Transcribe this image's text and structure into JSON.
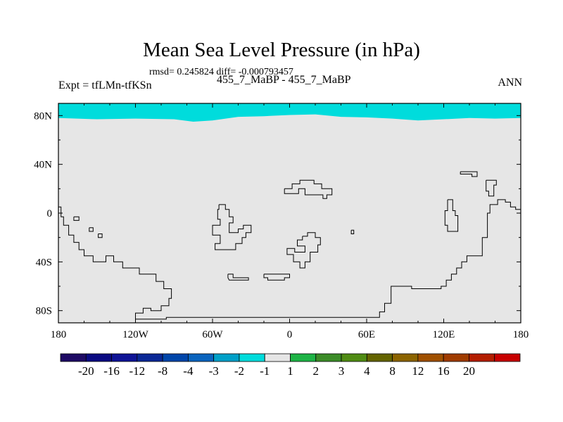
{
  "chart_data": {
    "type": "heatmap",
    "title": "Mean Sea Level Pressure (in hPa)",
    "stats_line": "rmsd= 0.245824 diff= -0.000793457",
    "subtitle": "455_7_MaBP - 455_7_MaBP",
    "left_label": "Expt = tfLMn-tfKSn",
    "right_label": "ANN",
    "x_range": [
      -180,
      180
    ],
    "y_range": [
      -90,
      90
    ],
    "x_ticks": [
      {
        "value": -180,
        "label": "180"
      },
      {
        "value": -120,
        "label": "120W"
      },
      {
        "value": -60,
        "label": "60W"
      },
      {
        "value": 0,
        "label": "0"
      },
      {
        "value": 60,
        "label": "60E"
      },
      {
        "value": 120,
        "label": "120E"
      },
      {
        "value": 180,
        "label": "180"
      }
    ],
    "y_ticks": [
      {
        "value": 80,
        "label": "80N"
      },
      {
        "value": 40,
        "label": "40N"
      },
      {
        "value": 0,
        "label": "0"
      },
      {
        "value": -40,
        "label": "40S"
      },
      {
        "value": -80,
        "label": "80S"
      }
    ],
    "colorbar": {
      "colors": [
        "#1e0a64",
        "#0a0a82",
        "#0f1496",
        "#0a2896",
        "#0046aa",
        "#0a64be",
        "#00a0c8",
        "#00dcdc",
        "#e6e6e6",
        "#1eb446",
        "#3c8c28",
        "#508c14",
        "#646400",
        "#8c6400",
        "#a05000",
        "#a03c00",
        "#b41e00",
        "#c80000"
      ],
      "labels": [
        "-20",
        "-16",
        "-12",
        "-8",
        "-4",
        "-3",
        "-2",
        "-1",
        "1",
        "2",
        "3",
        "4",
        "8",
        "12",
        "16",
        "20"
      ]
    },
    "fields": {
      "dominant_value_range": [
        -1,
        1
      ],
      "dominant_color": "#e6e6e6",
      "arctic_band_value_range": [
        -2,
        -1
      ],
      "arctic_band_color": "#00dcdc",
      "arctic_band_boundary": [
        [
          -180,
          78
        ],
        [
          -150,
          77
        ],
        [
          -120,
          77.5
        ],
        [
          -90,
          77
        ],
        [
          -75,
          75
        ],
        [
          -60,
          76
        ],
        [
          -40,
          79
        ],
        [
          -20,
          79.5
        ],
        [
          0,
          80.5
        ],
        [
          20,
          81
        ],
        [
          40,
          79
        ],
        [
          60,
          78.5
        ],
        [
          80,
          77.5
        ],
        [
          100,
          76
        ],
        [
          120,
          77
        ],
        [
          140,
          78
        ],
        [
          160,
          77.5
        ],
        [
          180,
          78
        ]
      ]
    },
    "contours": [
      [
        [
          -180,
          5
        ],
        [
          -178,
          5
        ],
        [
          -178,
          -3
        ],
        [
          -176,
          -3
        ],
        [
          -176,
          -10
        ],
        [
          -172,
          -10
        ],
        [
          -172,
          -18
        ],
        [
          -168,
          -18
        ],
        [
          -168,
          -24
        ],
        [
          -164,
          -24
        ],
        [
          -164,
          -30
        ],
        [
          -160,
          -30
        ],
        [
          -160,
          -35
        ],
        [
          -153,
          -35
        ],
        [
          -153,
          -40
        ],
        [
          -143,
          -40
        ],
        [
          -143,
          -35
        ],
        [
          -137,
          -35
        ],
        [
          -137,
          -40
        ],
        [
          -130,
          -40
        ],
        [
          -130,
          -45
        ],
        [
          -117,
          -45
        ],
        [
          -117,
          -50
        ],
        [
          -104,
          -50
        ],
        [
          -104,
          -56
        ],
        [
          -98,
          -56
        ],
        [
          -98,
          -62
        ],
        [
          -92,
          -62
        ],
        [
          -92,
          -70
        ],
        [
          -94,
          -70
        ],
        [
          -94,
          -76
        ],
        [
          -100,
          -76
        ],
        [
          -100,
          -80
        ],
        [
          -108,
          -80
        ],
        [
          -108,
          -78
        ],
        [
          -114,
          -78
        ],
        [
          -114,
          -82
        ],
        [
          -120,
          -82
        ],
        [
          -120,
          -87
        ],
        [
          -96,
          -87
        ],
        [
          -96,
          -85.5
        ],
        [
          70,
          -85.5
        ],
        [
          70,
          -81
        ],
        [
          74,
          -81
        ],
        [
          74,
          -74
        ],
        [
          79,
          -74
        ],
        [
          79,
          -60
        ],
        [
          95,
          -60
        ],
        [
          95,
          -62
        ],
        [
          118,
          -62
        ],
        [
          118,
          -60
        ],
        [
          122,
          -60
        ],
        [
          122,
          -55
        ],
        [
          126,
          -55
        ],
        [
          126,
          -50
        ],
        [
          130,
          -50
        ],
        [
          130,
          -45
        ],
        [
          134,
          -45
        ],
        [
          134,
          -40
        ],
        [
          138,
          -40
        ],
        [
          138,
          -35
        ],
        [
          150,
          -35
        ],
        [
          150,
          -20
        ],
        [
          154,
          -20
        ],
        [
          154,
          0
        ],
        [
          156,
          0
        ],
        [
          156,
          7
        ],
        [
          162,
          7
        ],
        [
          162,
          11
        ],
        [
          168,
          11
        ],
        [
          168,
          9
        ],
        [
          172,
          9
        ],
        [
          172,
          5
        ],
        [
          176,
          5
        ],
        [
          176,
          3
        ],
        [
          180,
          3
        ]
      ],
      [
        [
          -168,
          -3
        ],
        [
          -164,
          -3
        ],
        [
          -164,
          -6
        ],
        [
          -168,
          -6
        ],
        [
          -168,
          -3
        ]
      ],
      [
        [
          -156,
          -12
        ],
        [
          -153,
          -12
        ],
        [
          -153,
          -15
        ],
        [
          -156,
          -15
        ],
        [
          -156,
          -12
        ]
      ],
      [
        [
          -149,
          -17
        ],
        [
          -146,
          -17
        ],
        [
          -146,
          -20
        ],
        [
          -149,
          -20
        ],
        [
          -149,
          -17
        ]
      ],
      [
        [
          -55,
          7
        ],
        [
          -50,
          7
        ],
        [
          -50,
          3
        ],
        [
          -47,
          3
        ],
        [
          -47,
          -3
        ],
        [
          -44,
          -3
        ],
        [
          -44,
          -8
        ],
        [
          -47,
          -8
        ],
        [
          -47,
          -16
        ],
        [
          -40,
          -16
        ],
        [
          -40,
          -13
        ],
        [
          -36,
          -13
        ],
        [
          -36,
          -10
        ],
        [
          -30,
          -10
        ],
        [
          -30,
          -16
        ],
        [
          -34,
          -16
        ],
        [
          -34,
          -20
        ],
        [
          -37,
          -20
        ],
        [
          -37,
          -25
        ],
        [
          -42,
          -25
        ],
        [
          -42,
          -30
        ],
        [
          -58,
          -30
        ],
        [
          -58,
          -25
        ],
        [
          -54,
          -25
        ],
        [
          -54,
          -18
        ],
        [
          -60,
          -18
        ],
        [
          -60,
          -10
        ],
        [
          -54,
          -10
        ],
        [
          -54,
          -5
        ],
        [
          -56,
          -5
        ],
        [
          -56,
          3
        ],
        [
          -55,
          3
        ],
        [
          -55,
          7
        ]
      ],
      [
        [
          -48,
          -50
        ],
        [
          -44,
          -50
        ],
        [
          -44,
          -53
        ],
        [
          -32,
          -53
        ],
        [
          -32,
          -55
        ],
        [
          -47,
          -55
        ],
        [
          -48,
          -53
        ],
        [
          -48,
          -50
        ]
      ],
      [
        [
          -20,
          -50
        ],
        [
          0,
          -50
        ],
        [
          0,
          -53
        ],
        [
          -4,
          -53
        ],
        [
          -4,
          -55
        ],
        [
          -17,
          -55
        ],
        [
          -17,
          -53
        ],
        [
          -20,
          -53
        ],
        [
          -20,
          -50
        ]
      ],
      [
        [
          -4,
          20
        ],
        [
          2,
          20
        ],
        [
          2,
          24
        ],
        [
          8,
          24
        ],
        [
          8,
          27
        ],
        [
          19,
          27
        ],
        [
          19,
          24
        ],
        [
          25,
          24
        ],
        [
          25,
          20
        ],
        [
          33,
          20
        ],
        [
          33,
          15
        ],
        [
          29,
          15
        ],
        [
          29,
          12
        ],
        [
          26,
          12
        ],
        [
          26,
          15
        ],
        [
          12,
          15
        ],
        [
          12,
          20
        ],
        [
          7,
          20
        ],
        [
          7,
          16
        ],
        [
          -4,
          16
        ],
        [
          -4,
          20
        ]
      ],
      [
        [
          10,
          -19
        ],
        [
          14,
          -19
        ],
        [
          14,
          -16
        ],
        [
          20,
          -16
        ],
        [
          20,
          -20
        ],
        [
          24,
          -20
        ],
        [
          24,
          -26
        ],
        [
          22,
          -26
        ],
        [
          22,
          -32
        ],
        [
          16,
          -32
        ],
        [
          16,
          -40
        ],
        [
          12,
          -40
        ],
        [
          12,
          -45
        ],
        [
          8,
          -45
        ],
        [
          8,
          -40
        ],
        [
          3,
          -40
        ],
        [
          3,
          -34
        ],
        [
          -2,
          -34
        ],
        [
          -2,
          -29
        ],
        [
          4,
          -29
        ],
        [
          4,
          -32
        ],
        [
          12,
          -32
        ],
        [
          12,
          -27
        ],
        [
          6,
          -27
        ],
        [
          6,
          -22
        ],
        [
          10,
          -22
        ],
        [
          10,
          -19
        ]
      ],
      [
        [
          48,
          -14
        ],
        [
          50,
          -14
        ],
        [
          50,
          -17
        ],
        [
          48,
          -17
        ],
        [
          48,
          -14
        ]
      ],
      [
        [
          123,
          11
        ],
        [
          127,
          11
        ],
        [
          127,
          2
        ],
        [
          129,
          2
        ],
        [
          129,
          -2
        ],
        [
          131,
          -2
        ],
        [
          131,
          -15
        ],
        [
          123,
          -15
        ],
        [
          123,
          -10
        ],
        [
          121,
          -10
        ],
        [
          121,
          2
        ],
        [
          123,
          2
        ],
        [
          123,
          11
        ]
      ],
      [
        [
          133,
          34
        ],
        [
          146,
          34
        ],
        [
          146,
          30
        ],
        [
          142,
          30
        ],
        [
          142,
          32
        ],
        [
          133,
          32
        ],
        [
          133,
          34
        ]
      ],
      [
        [
          153,
          27
        ],
        [
          161,
          27
        ],
        [
          161,
          23
        ],
        [
          159,
          23
        ],
        [
          159,
          14
        ],
        [
          155,
          14
        ],
        [
          155,
          18
        ],
        [
          153,
          18
        ],
        [
          153,
          27
        ]
      ]
    ]
  }
}
